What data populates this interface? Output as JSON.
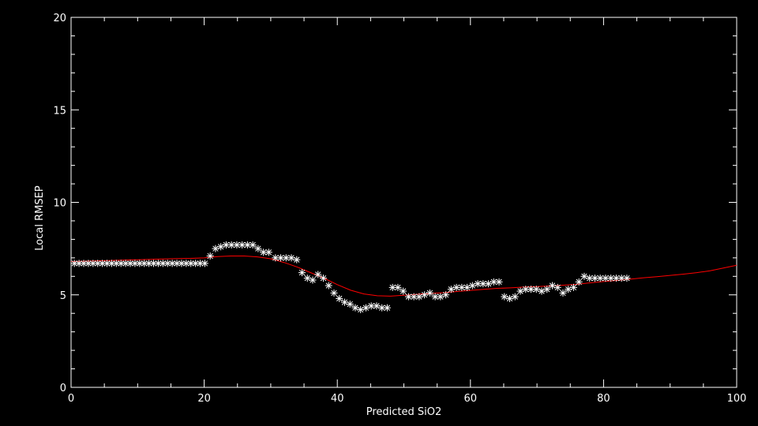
{
  "chart_data": {
    "type": "scatter",
    "title": "",
    "xlabel": "Predicted SiO2",
    "ylabel": "Local RMSEP",
    "xlim": [
      0,
      100
    ],
    "ylim": [
      0,
      20
    ],
    "x_ticks": [
      0,
      20,
      40,
      60,
      80,
      100
    ],
    "y_ticks": [
      0,
      5,
      10,
      15,
      20
    ],
    "x_tick_labels": [
      "0",
      "20",
      "40",
      "60",
      "80",
      "100"
    ],
    "y_tick_labels": [
      "0",
      "5",
      "10",
      "15",
      "20"
    ],
    "x_minor_step": 5,
    "y_minor_step": 1,
    "grid": false,
    "legend": "none",
    "background_color": "#000000",
    "axis_color": "#ffffff",
    "series": [
      {
        "type": "scatter",
        "marker": "asterisk",
        "color": "#ffffff",
        "x": [
          0.5,
          1.2,
          1.9,
          2.6,
          3.3,
          4.0,
          4.7,
          5.4,
          6.1,
          6.8,
          7.5,
          8.2,
          8.9,
          9.6,
          10.3,
          11.0,
          11.7,
          12.4,
          13.1,
          13.8,
          14.5,
          15.2,
          15.9,
          16.6,
          17.3,
          18.0,
          18.7,
          19.4,
          20.1,
          20.9,
          21.7,
          22.5,
          23.3,
          24.1,
          24.9,
          25.7,
          26.5,
          27.3,
          28.1,
          28.9,
          29.7,
          30.7,
          31.5,
          32.3,
          33.1,
          33.9,
          34.7,
          35.5,
          36.3,
          37.1,
          37.9,
          38.7,
          39.5,
          40.3,
          41.1,
          41.9,
          42.7,
          43.5,
          44.3,
          45.1,
          45.9,
          46.7,
          47.5,
          48.3,
          49.1,
          49.9,
          50.7,
          51.5,
          52.3,
          53.1,
          53.9,
          54.7,
          55.5,
          56.3,
          57.1,
          57.9,
          58.7,
          59.5,
          60.3,
          61.1,
          61.9,
          62.7,
          63.5,
          64.3,
          65.1,
          65.9,
          66.7,
          67.5,
          68.3,
          69.1,
          69.9,
          70.7,
          71.5,
          72.3,
          73.1,
          73.9,
          74.7,
          75.5,
          76.3,
          77.1,
          77.9,
          78.7,
          79.5,
          80.3,
          81.1,
          81.9,
          82.7,
          83.5
        ],
        "y": [
          6.7,
          6.7,
          6.7,
          6.7,
          6.7,
          6.7,
          6.7,
          6.7,
          6.7,
          6.7,
          6.7,
          6.7,
          6.7,
          6.7,
          6.7,
          6.7,
          6.7,
          6.7,
          6.7,
          6.7,
          6.7,
          6.7,
          6.7,
          6.7,
          6.7,
          6.7,
          6.7,
          6.7,
          6.7,
          7.1,
          7.5,
          7.6,
          7.7,
          7.7,
          7.7,
          7.7,
          7.7,
          7.7,
          7.5,
          7.3,
          7.3,
          7.0,
          7.0,
          7.0,
          7.0,
          6.9,
          6.2,
          5.9,
          5.8,
          6.1,
          5.9,
          5.5,
          5.1,
          4.8,
          4.6,
          4.5,
          4.3,
          4.2,
          4.3,
          4.4,
          4.4,
          4.3,
          4.3,
          5.4,
          5.4,
          5.2,
          4.9,
          4.9,
          4.9,
          5.0,
          5.1,
          4.9,
          4.9,
          5.0,
          5.3,
          5.4,
          5.4,
          5.4,
          5.5,
          5.6,
          5.6,
          5.6,
          5.7,
          5.7,
          4.9,
          4.8,
          4.9,
          5.2,
          5.3,
          5.3,
          5.3,
          5.2,
          5.3,
          5.5,
          5.4,
          5.1,
          5.3,
          5.4,
          5.7,
          6.0,
          5.9,
          5.9,
          5.9,
          5.9,
          5.9,
          5.9,
          5.9,
          5.9
        ]
      },
      {
        "type": "line",
        "color": "#ff0000",
        "x": [
          0,
          5,
          10,
          15,
          18,
          20,
          21,
          22,
          24,
          26,
          28,
          30,
          32,
          34,
          36,
          38,
          40,
          42,
          44,
          46,
          48,
          50,
          52,
          54,
          56,
          58,
          60,
          62,
          64,
          66,
          68,
          70,
          72,
          74,
          76,
          78,
          80,
          82,
          84,
          86,
          88,
          90,
          92,
          94,
          96,
          98,
          100
        ],
        "y": [
          6.8,
          6.85,
          6.9,
          6.95,
          6.97,
          7.0,
          7.03,
          7.07,
          7.1,
          7.1,
          7.05,
          6.95,
          6.75,
          6.5,
          6.2,
          5.9,
          5.55,
          5.25,
          5.05,
          4.95,
          4.93,
          4.98,
          5.03,
          5.08,
          5.12,
          5.18,
          5.24,
          5.3,
          5.35,
          5.38,
          5.42,
          5.45,
          5.48,
          5.52,
          5.57,
          5.65,
          5.72,
          5.78,
          5.85,
          5.92,
          5.98,
          6.05,
          6.12,
          6.2,
          6.3,
          6.45,
          6.6
        ]
      }
    ]
  }
}
